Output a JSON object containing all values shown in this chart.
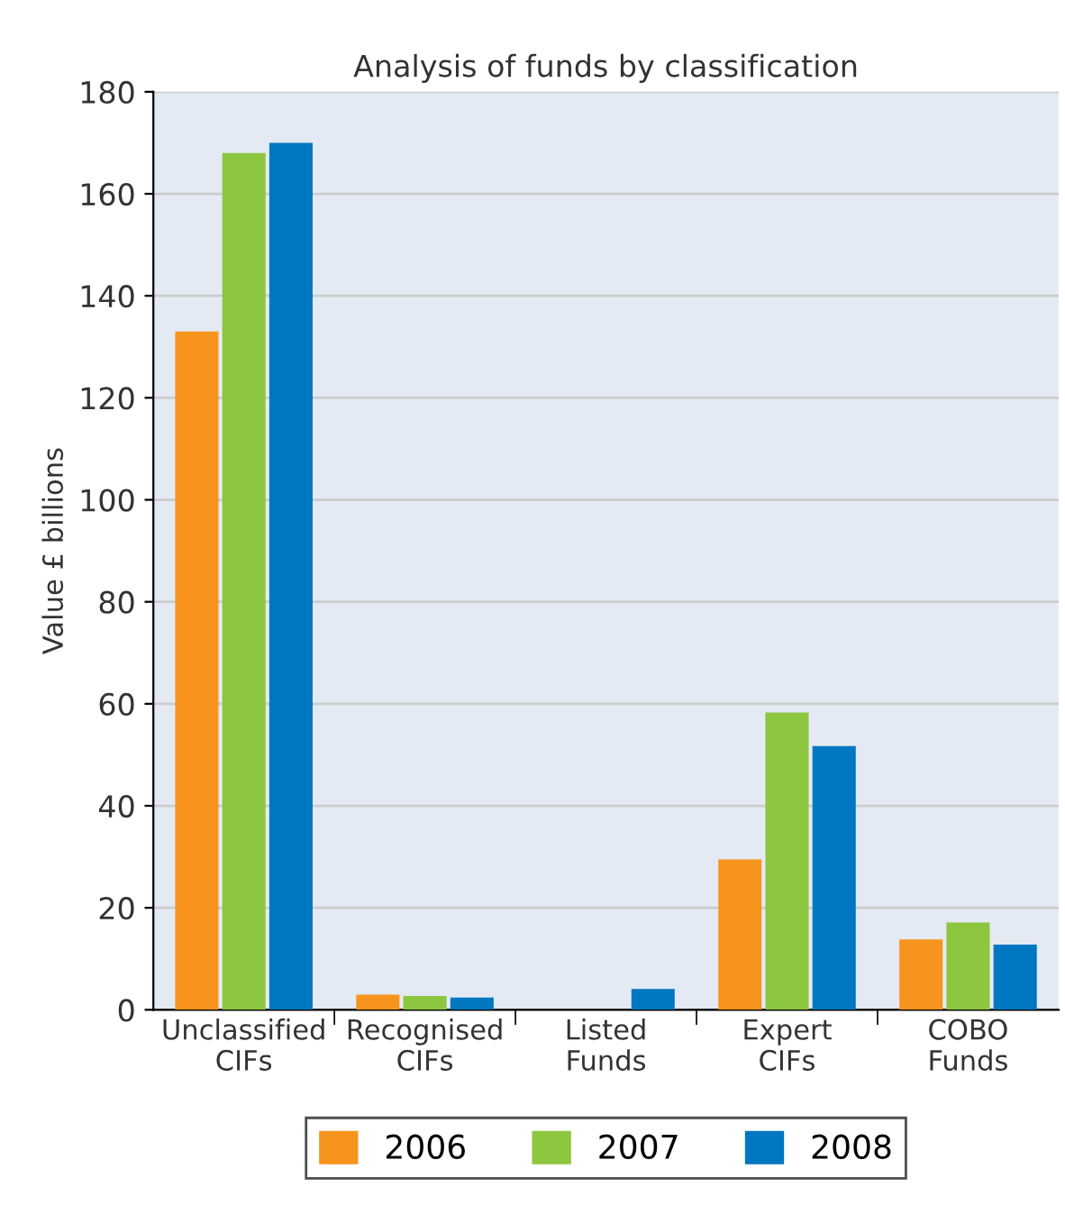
{
  "chart_data": {
    "type": "bar",
    "title": "Analysis of funds by classification",
    "ylabel": "Value £ billions",
    "categories": [
      "Unclassified\nCIFs",
      "Recognised\nCIFs",
      "Listed\nFunds",
      "Expert\nCIFs",
      "COBO\nFunds"
    ],
    "series": [
      {
        "name": "2006",
        "color": "#f7941d",
        "values": [
          133,
          3.0,
          0,
          29.5,
          13.8
        ]
      },
      {
        "name": "2007",
        "color": "#8dc63f",
        "values": [
          168,
          2.7,
          0,
          58.3,
          17.1
        ]
      },
      {
        "name": "2008",
        "color": "#0077c0",
        "values": [
          170,
          2.4,
          4.1,
          51.7,
          12.8
        ]
      }
    ],
    "ylim": [
      0,
      180
    ],
    "yticks": [
      0,
      20,
      40,
      60,
      80,
      100,
      120,
      140,
      160,
      180
    ],
    "grid": "y",
    "legend": "bottom"
  }
}
